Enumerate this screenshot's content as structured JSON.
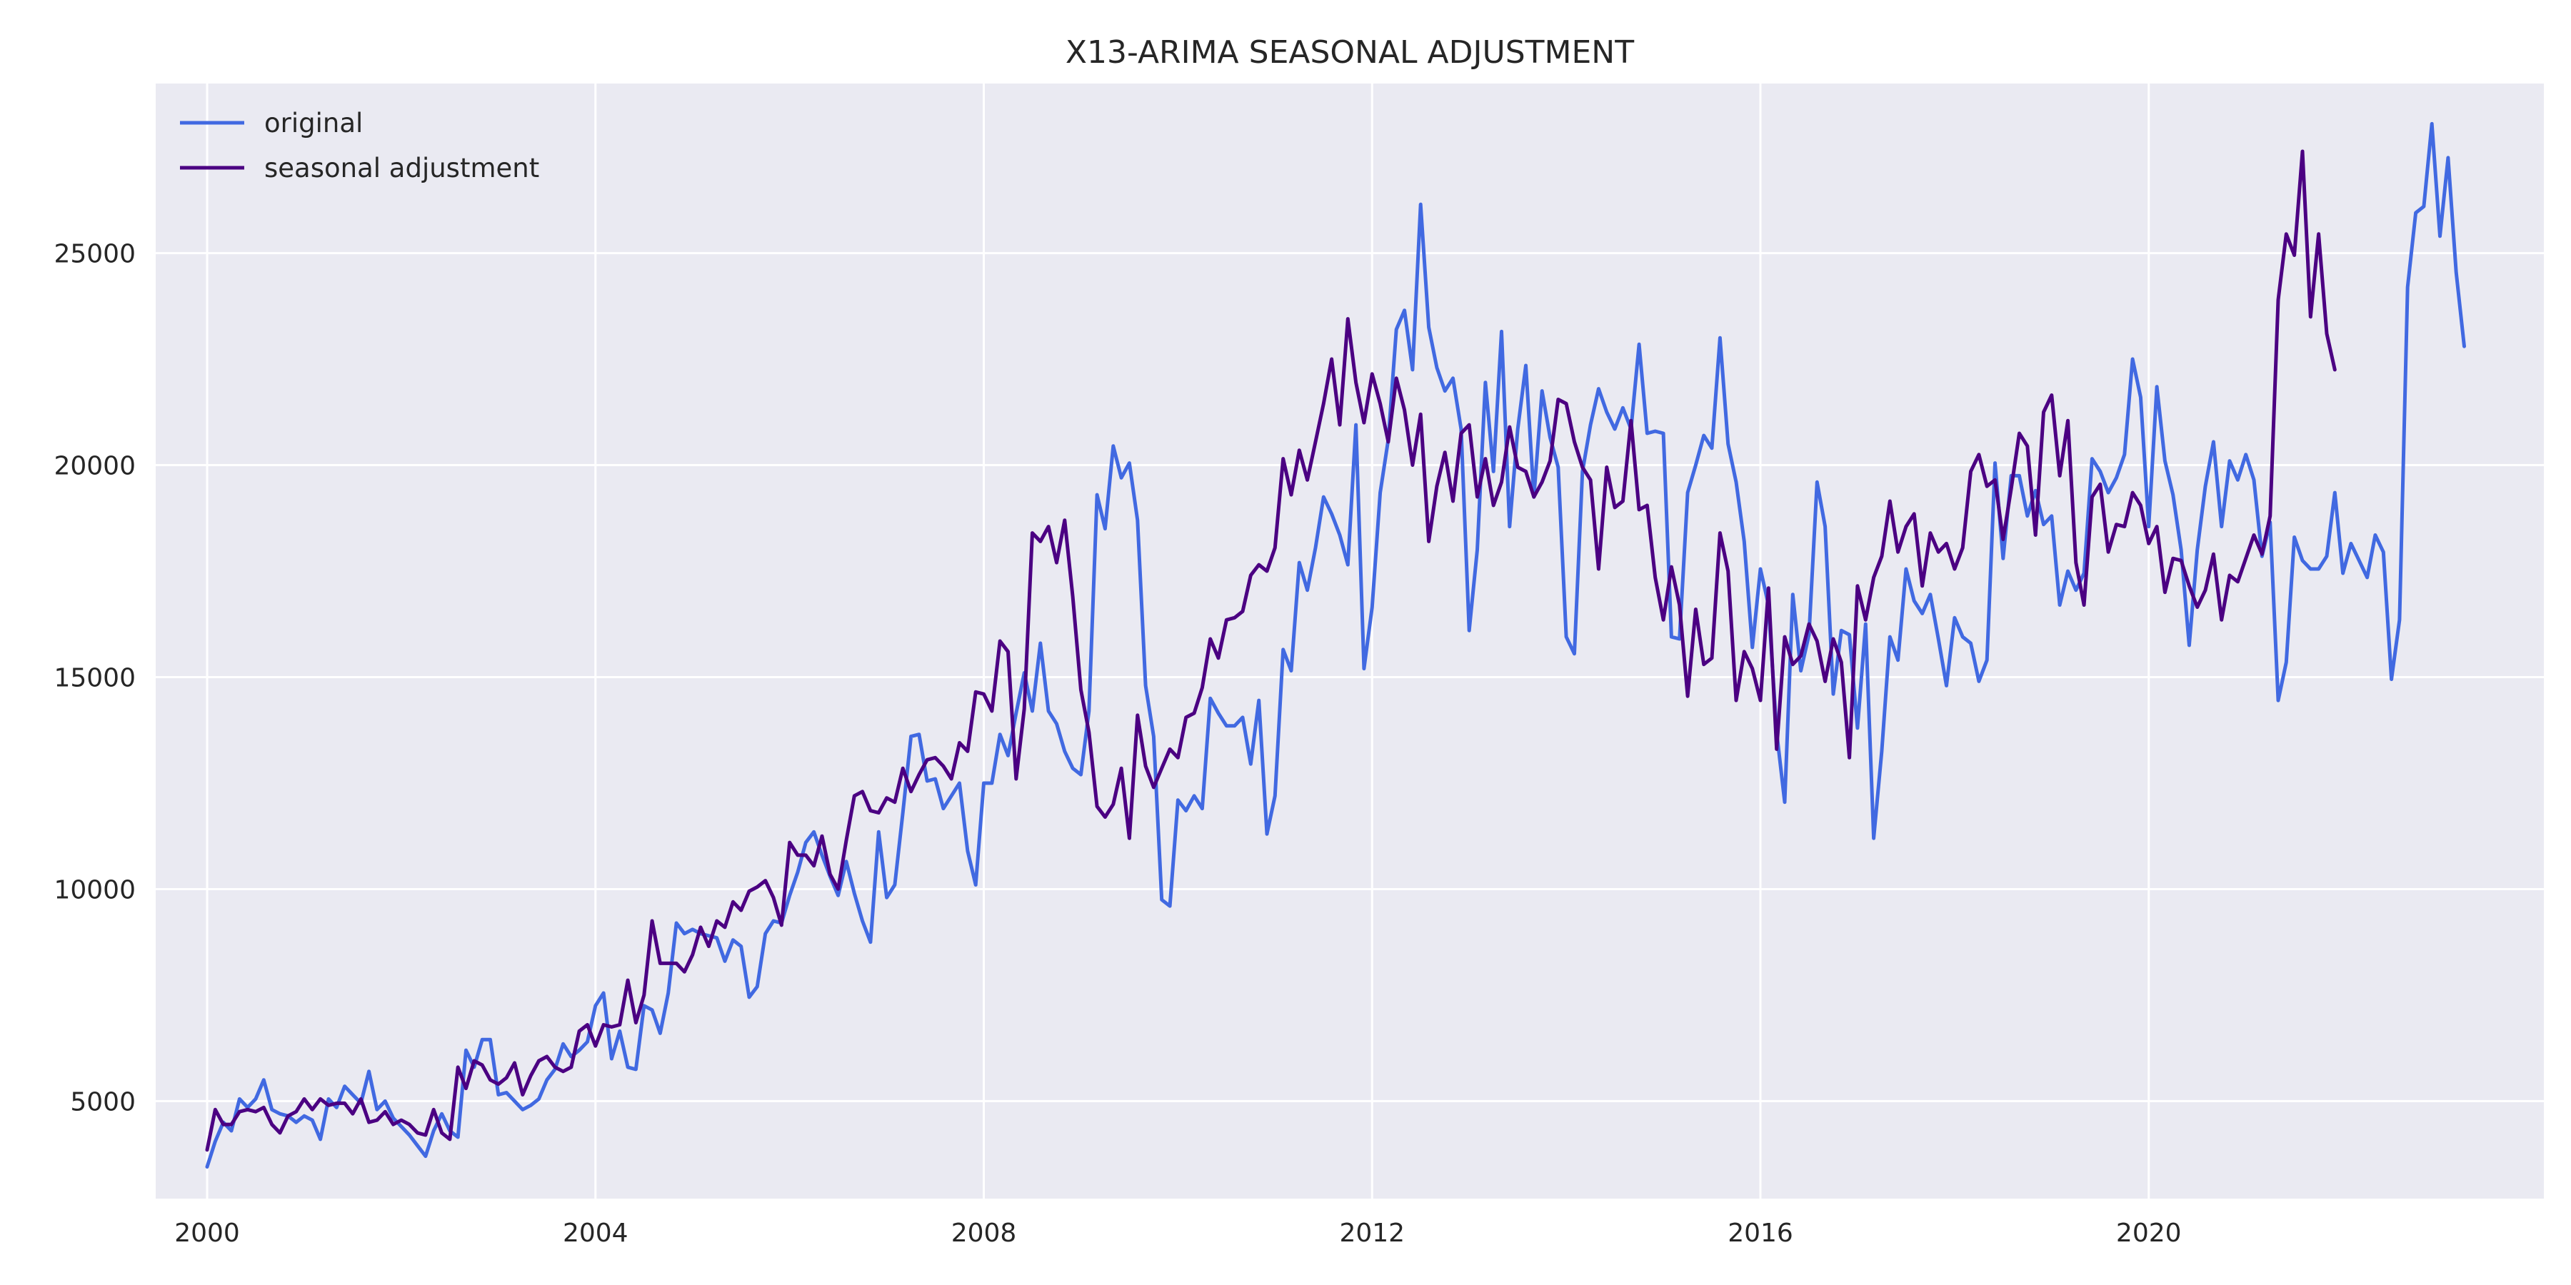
{
  "chart_data": {
    "type": "line",
    "title": "X13-ARIMA SEASONAL ADJUSTMENT",
    "xlabel": "",
    "ylabel": "",
    "xlim": [
      1999.47,
      2024.07
    ],
    "ylim": [
      2700,
      29000
    ],
    "x_ticks": [
      2000,
      2004,
      2008,
      2012,
      2016,
      2020
    ],
    "y_ticks": [
      5000,
      10000,
      15000,
      20000,
      25000
    ],
    "x_tick_labels": [
      "2000",
      "2004",
      "2008",
      "2012",
      "2016",
      "2020"
    ],
    "y_tick_labels": [
      "5000",
      "10000",
      "15000",
      "20000",
      "25000"
    ],
    "grid": true,
    "legend_position": "top-left",
    "x_start_year": 2000,
    "x_step_months": 1,
    "series": [
      {
        "name": "original",
        "color": "#4169e1",
        "values": [
          3450,
          4050,
          4500,
          4300,
          5050,
          4850,
          5050,
          5500,
          4800,
          4700,
          4650,
          4500,
          4650,
          4550,
          4100,
          5050,
          4850,
          5350,
          5150,
          4950,
          5700,
          4800,
          5000,
          4600,
          4400,
          4200,
          3950,
          3700,
          4300,
          4700,
          4300,
          4150,
          6200,
          5800,
          6450,
          6450,
          5150,
          5200,
          5000,
          4800,
          4900,
          5050,
          5500,
          5750,
          6350,
          6050,
          6200,
          6400,
          7250,
          7550,
          6000,
          6650,
          5800,
          5750,
          7250,
          7150,
          6600,
          7550,
          9200,
          8950,
          9050,
          8950,
          8900,
          8850,
          8300,
          8800,
          8650,
          7450,
          7700,
          8950,
          9250,
          9200,
          9850,
          10400,
          11100,
          11350,
          10800,
          10300,
          9850,
          10650,
          9900,
          9250,
          8750,
          11350,
          9800,
          10100,
          11800,
          13600,
          13650,
          12550,
          12600,
          11900,
          12200,
          12500,
          10900,
          10100,
          12500,
          12500,
          13650,
          13150,
          14150,
          15100,
          14200,
          15800,
          14200,
          13900,
          13250,
          12850,
          12700,
          14200,
          19300,
          18500,
          20450,
          19700,
          20050,
          18700,
          14800,
          13600,
          9750,
          9600,
          12100,
          11850,
          12200,
          11900,
          14500,
          14150,
          13850,
          13850,
          14050,
          12950,
          14450,
          11300,
          12200,
          15650,
          15150,
          17700,
          17050,
          18050,
          19250,
          18850,
          18350,
          17650,
          20950,
          15200,
          16650,
          19350,
          20600,
          23200,
          23650,
          22250,
          26150,
          23250,
          22300,
          21750,
          22050,
          20850,
          16100,
          18000,
          21950,
          19850,
          23150,
          18550,
          20850,
          22350,
          19250,
          21750,
          20650,
          19950,
          15950,
          15550,
          19850,
          20950,
          21800,
          21250,
          20850,
          21350,
          20850,
          22850,
          20750,
          20800,
          20750,
          15950,
          15900,
          19350,
          20000,
          20700,
          20400,
          23000,
          20500,
          19600,
          18200,
          15700,
          17550,
          16700,
          13700,
          12050,
          16950,
          15150,
          16000,
          19600,
          18550,
          14600,
          16100,
          16000,
          13800,
          16250,
          11200,
          13250,
          15950,
          15400,
          17550,
          16800,
          16500,
          16950,
          15900,
          14800,
          16400,
          15950,
          15800,
          14900,
          15400,
          20050,
          17800,
          19750,
          19750,
          18800,
          19400,
          18600,
          18800,
          16700,
          17500,
          17050,
          17450,
          20150,
          19850,
          19350,
          19700,
          20250,
          22500,
          21600,
          18550,
          21850,
          20100,
          19300,
          18000,
          15750,
          18000,
          19500,
          20550,
          18550,
          20100,
          19650,
          20250,
          19650,
          17850,
          18650,
          14450,
          15350,
          18300,
          17750,
          17550,
          17550,
          17850,
          19350,
          17450,
          18150,
          17750,
          17350,
          18350,
          17950,
          14950,
          16350,
          24200,
          25950,
          26100,
          28050,
          25400,
          27250,
          24550,
          22800
        ]
      },
      {
        "name": "seasonal adjustment",
        "color": "#4b0082",
        "values": [
          3850,
          4800,
          4450,
          4450,
          4750,
          4800,
          4750,
          4850,
          4450,
          4250,
          4650,
          4750,
          5050,
          4800,
          5050,
          4900,
          4950,
          4950,
          4700,
          5050,
          4500,
          4550,
          4750,
          4450,
          4550,
          4450,
          4250,
          4200,
          4800,
          4250,
          4100,
          5800,
          5300,
          5950,
          5850,
          5500,
          5400,
          5550,
          5900,
          5150,
          5600,
          5950,
          6050,
          5800,
          5700,
          5800,
          6650,
          6800,
          6300,
          6800,
          6750,
          6800,
          7850,
          6850,
          7500,
          9250,
          8250,
          8250,
          8250,
          8050,
          8450,
          9100,
          8650,
          9250,
          9100,
          9700,
          9500,
          9950,
          10050,
          10200,
          9800,
          9150,
          11100,
          10800,
          10800,
          10550,
          11250,
          10350,
          10000,
          11150,
          12200,
          12300,
          11850,
          11800,
          12150,
          12050,
          12850,
          12300,
          12700,
          13050,
          13100,
          12900,
          12600,
          13450,
          13250,
          14650,
          14600,
          14200,
          15850,
          15600,
          12600,
          14250,
          18400,
          18200,
          18550,
          17700,
          18700,
          16900,
          14700,
          13700,
          11950,
          11700,
          12000,
          12850,
          11200,
          14100,
          12900,
          12400,
          12850,
          13300,
          13100,
          14050,
          14150,
          14750,
          15900,
          15450,
          16350,
          16400,
          16550,
          17400,
          17650,
          17500,
          18050,
          20150,
          19300,
          20350,
          19650,
          20550,
          21450,
          22500,
          20950,
          23450,
          21950,
          21000,
          22150,
          21450,
          20550,
          22050,
          21300,
          20000,
          21200,
          18200,
          19500,
          20300,
          19150,
          20750,
          20950,
          19250,
          20150,
          19050,
          19600,
          20900,
          19950,
          19850,
          19250,
          19600,
          20100,
          21550,
          21450,
          20550,
          19950,
          19650,
          17550,
          19950,
          19000,
          19150,
          21050,
          18950,
          19050,
          17350,
          16350,
          17600,
          16700,
          14550,
          16600,
          15300,
          15450,
          18400,
          17500,
          14450,
          15600,
          15200,
          14450,
          17100,
          13300,
          15950,
          15300,
          15500,
          16250,
          15850,
          14900,
          15900,
          15350,
          13100,
          17150,
          16350,
          17350,
          17850,
          19150,
          17950,
          18550,
          18850,
          17150,
          18400,
          17950,
          18150,
          17550,
          18050,
          19850,
          20250,
          19500,
          19650,
          18250,
          19450,
          20750,
          20450,
          18350,
          21250,
          21650,
          19750,
          21050,
          17700,
          16700,
          19250,
          19550,
          17950,
          18600,
          18550,
          19350,
          19050,
          18150,
          18550,
          17000,
          17800,
          17750,
          17150,
          16650,
          17050,
          17900,
          16350,
          17400,
          17250,
          17800,
          18350,
          17900,
          18800,
          23900,
          25450,
          24950,
          27400,
          23500,
          25450,
          23100,
          22250
        ]
      }
    ]
  }
}
